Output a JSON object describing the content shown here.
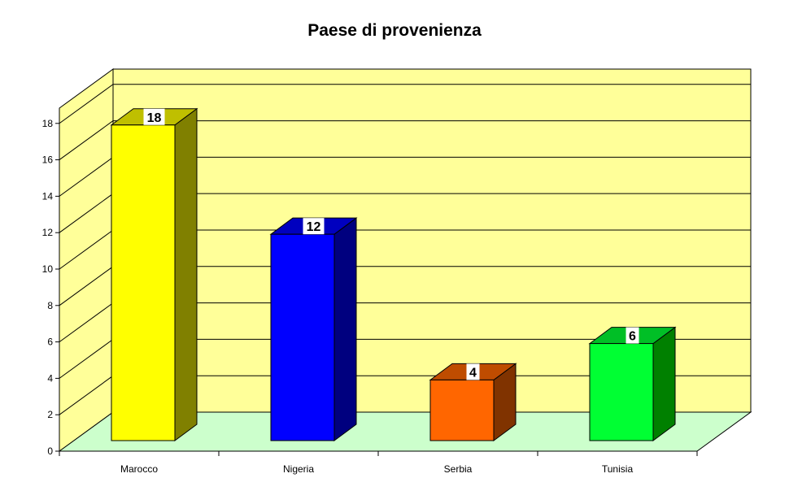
{
  "chart_data": {
    "type": "bar",
    "title": "Paese di provenienza",
    "categories": [
      "Marocco",
      "Nigeria",
      "Serbia",
      "Tunisia"
    ],
    "values": [
      18,
      12,
      4,
      6
    ],
    "colors": [
      "#ffff00",
      "#0000ff",
      "#ff6600",
      "#00ff33"
    ],
    "side_colors": [
      "#808000",
      "#00007f",
      "#803300",
      "#008000"
    ],
    "top_colors": [
      "#bfbf00",
      "#0000bf",
      "#bf4c00",
      "#00bf26"
    ],
    "ylim": [
      0,
      18
    ],
    "yticks": [
      0,
      2,
      4,
      6,
      8,
      10,
      12,
      14,
      16,
      18
    ],
    "grid": true,
    "data_labels": true,
    "wall_color": "#ffff99",
    "floor_color": "#ccffcc",
    "legend": "none"
  }
}
